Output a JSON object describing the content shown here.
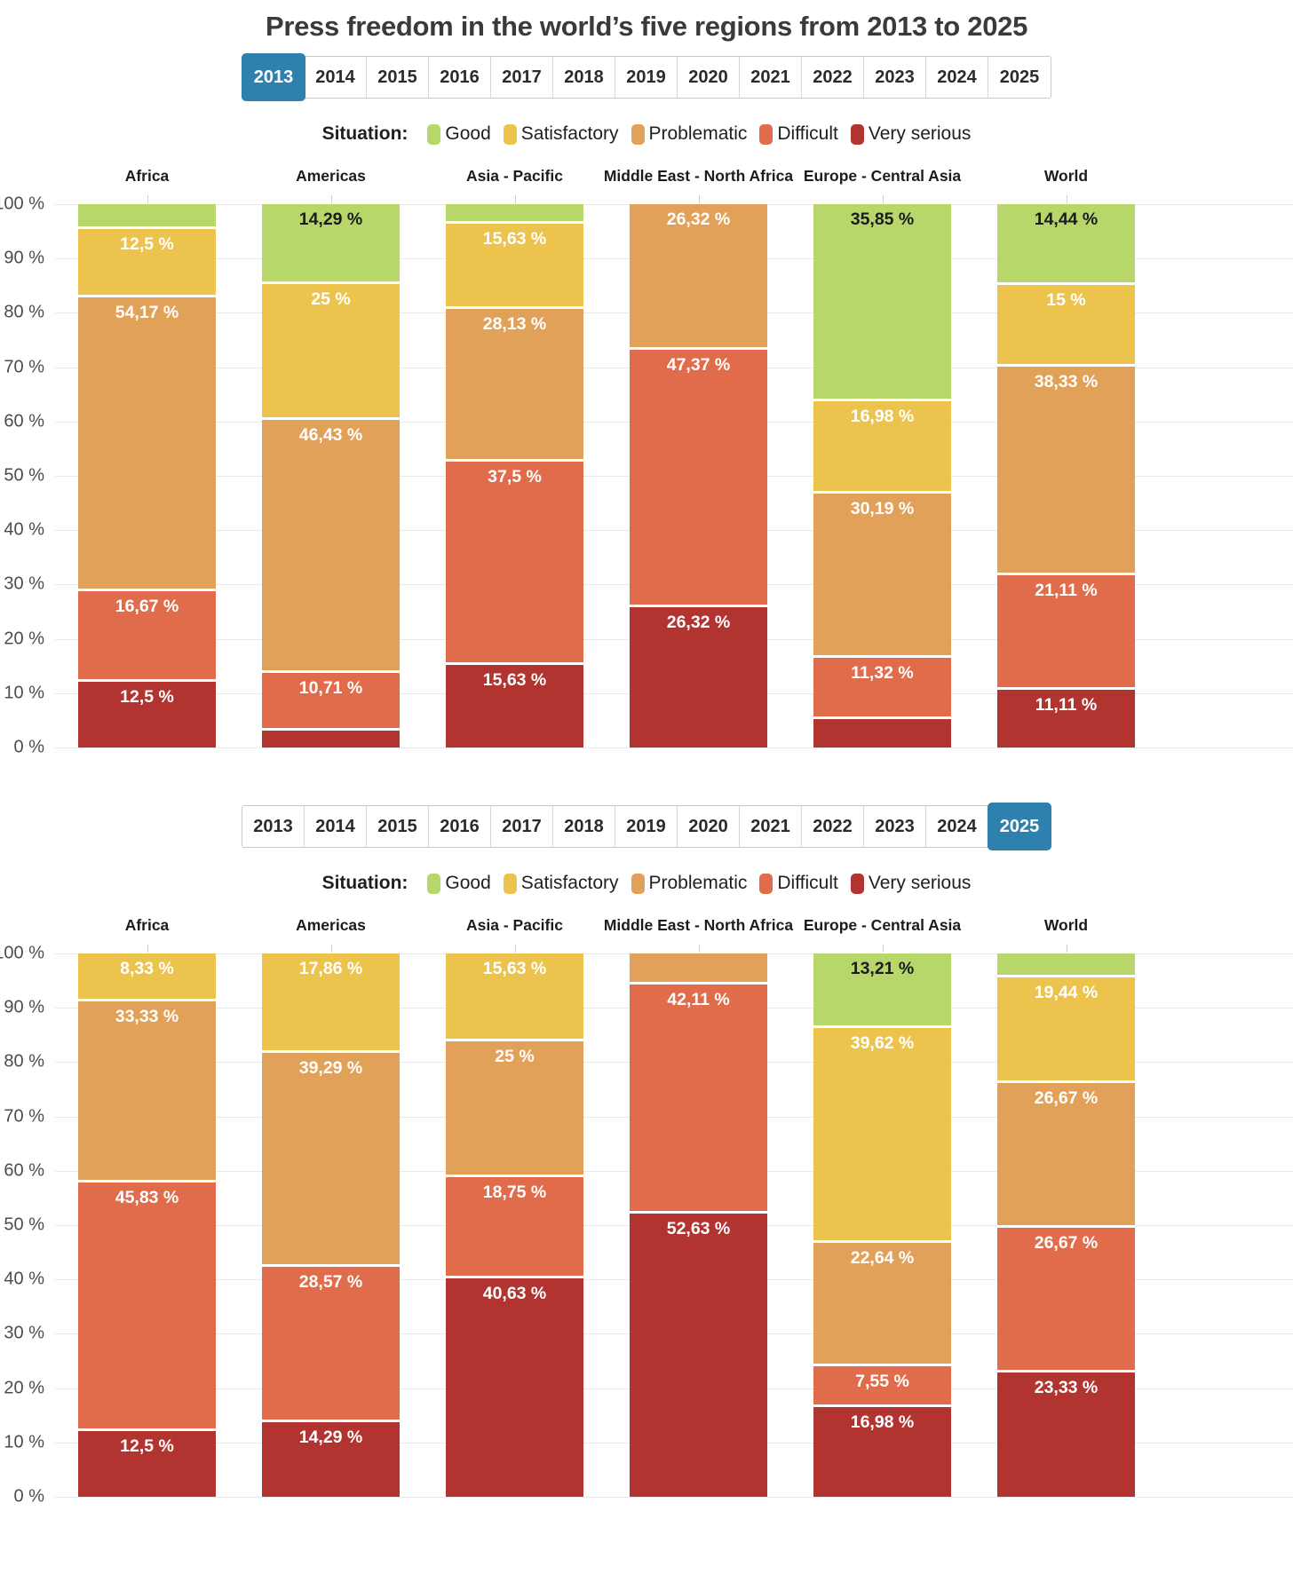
{
  "title": "Press freedom in the world’s five regions from 2013 to 2025",
  "years": [
    "2013",
    "2014",
    "2015",
    "2016",
    "2017",
    "2018",
    "2019",
    "2020",
    "2021",
    "2022",
    "2023",
    "2024",
    "2025"
  ],
  "legend": {
    "label": "Situation:",
    "items": [
      {
        "name": "Good",
        "color": "#b7d76b"
      },
      {
        "name": "Satisfactory",
        "color": "#ecc44d"
      },
      {
        "name": "Problematic",
        "color": "#e2a159"
      },
      {
        "name": "Difficult",
        "color": "#e06c4b"
      },
      {
        "name": "Very serious",
        "color": "#b23431"
      }
    ]
  },
  "colors": {
    "tab_selected": "#2e80af",
    "good": "#b7d76b",
    "satisfactory": "#ecc44d",
    "problematic": "#e2a159",
    "difficult": "#e06c4b",
    "very_serious": "#b23431"
  },
  "chart_data": [
    {
      "type": "bar",
      "stacked": true,
      "selected_year": "2013",
      "categories": [
        "Africa",
        "Americas",
        "Asia - Pacific",
        "Middle East - North Africa",
        "Europe - Central Asia",
        "World"
      ],
      "y_ticks": [
        "100 %",
        "90 %",
        "80 %",
        "70 %",
        "60 %",
        "50 %",
        "40 %",
        "30 %",
        "20 %",
        "10 %",
        "0 %"
      ],
      "ylim": [
        0,
        100
      ],
      "grid": true,
      "series": [
        {
          "name": "Very serious",
          "color": "#b23431",
          "values": [
            12.5,
            3.57,
            15.63,
            26.32,
            5.66,
            11.11
          ],
          "labels": [
            "12,5 %",
            "",
            "15,63 %",
            "26,32 %",
            "",
            "11,11 %"
          ]
        },
        {
          "name": "Difficult",
          "color": "#e06c4b",
          "values": [
            16.67,
            10.71,
            37.5,
            47.37,
            11.32,
            21.11
          ],
          "labels": [
            "16,67 %",
            "10,71 %",
            "37,5 %",
            "47,37 %",
            "11,32 %",
            "21,11 %"
          ]
        },
        {
          "name": "Problematic",
          "color": "#e2a159",
          "values": [
            54.17,
            46.43,
            28.13,
            26.32,
            30.19,
            38.33
          ],
          "labels": [
            "54,17 %",
            "46,43 %",
            "28,13 %",
            "26,32 %",
            "30,19 %",
            "38,33 %"
          ]
        },
        {
          "name": "Satisfactory",
          "color": "#ecc44d",
          "values": [
            12.5,
            25,
            15.63,
            0,
            16.98,
            15
          ],
          "labels": [
            "12,5 %",
            "25 %",
            "15,63 %",
            "",
            "16,98 %",
            "15 %"
          ]
        },
        {
          "name": "Good",
          "color": "#b7d76b",
          "values": [
            4.16,
            14.29,
            3.11,
            0,
            35.85,
            14.44
          ],
          "labels": [
            "",
            "14,29 %",
            "",
            "",
            "35,85 %",
            "14,44 %"
          ]
        }
      ]
    },
    {
      "type": "bar",
      "stacked": true,
      "selected_year": "2025",
      "categories": [
        "Africa",
        "Americas",
        "Asia - Pacific",
        "Middle East - North Africa",
        "Europe - Central Asia",
        "World"
      ],
      "y_ticks": [
        "100 %",
        "90 %",
        "80 %",
        "70 %",
        "60 %",
        "50 %",
        "40 %",
        "30 %",
        "20 %",
        "10 %",
        "0 %"
      ],
      "ylim": [
        0,
        100
      ],
      "grid": true,
      "series": [
        {
          "name": "Very serious",
          "color": "#b23431",
          "values": [
            12.5,
            14.29,
            40.63,
            52.63,
            16.98,
            23.33
          ],
          "labels": [
            "12,5 %",
            "14,29 %",
            "40,63 %",
            "52,63 %",
            "16,98 %",
            "23,33 %"
          ]
        },
        {
          "name": "Difficult",
          "color": "#e06c4b",
          "values": [
            45.83,
            28.57,
            18.75,
            42.11,
            7.55,
            26.67
          ],
          "labels": [
            "45,83 %",
            "28,57 %",
            "18,75 %",
            "42,11 %",
            "7,55 %",
            "26,67 %"
          ]
        },
        {
          "name": "Problematic",
          "color": "#e2a159",
          "values": [
            33.33,
            39.29,
            25,
            5.26,
            22.64,
            26.67
          ],
          "labels": [
            "33,33 %",
            "39,29 %",
            "25 %",
            "",
            "22,64 %",
            "26,67 %"
          ]
        },
        {
          "name": "Satisfactory",
          "color": "#ecc44d",
          "values": [
            8.33,
            17.86,
            15.63,
            0,
            39.62,
            19.44
          ],
          "labels": [
            "8,33 %",
            "17,86 %",
            "15,63 %",
            "",
            "39,62 %",
            "19,44 %"
          ]
        },
        {
          "name": "Good",
          "color": "#b7d76b",
          "values": [
            0,
            0,
            0,
            0,
            13.21,
            3.89
          ],
          "labels": [
            "",
            "",
            "",
            "",
            "13,21 %",
            ""
          ]
        }
      ]
    }
  ]
}
